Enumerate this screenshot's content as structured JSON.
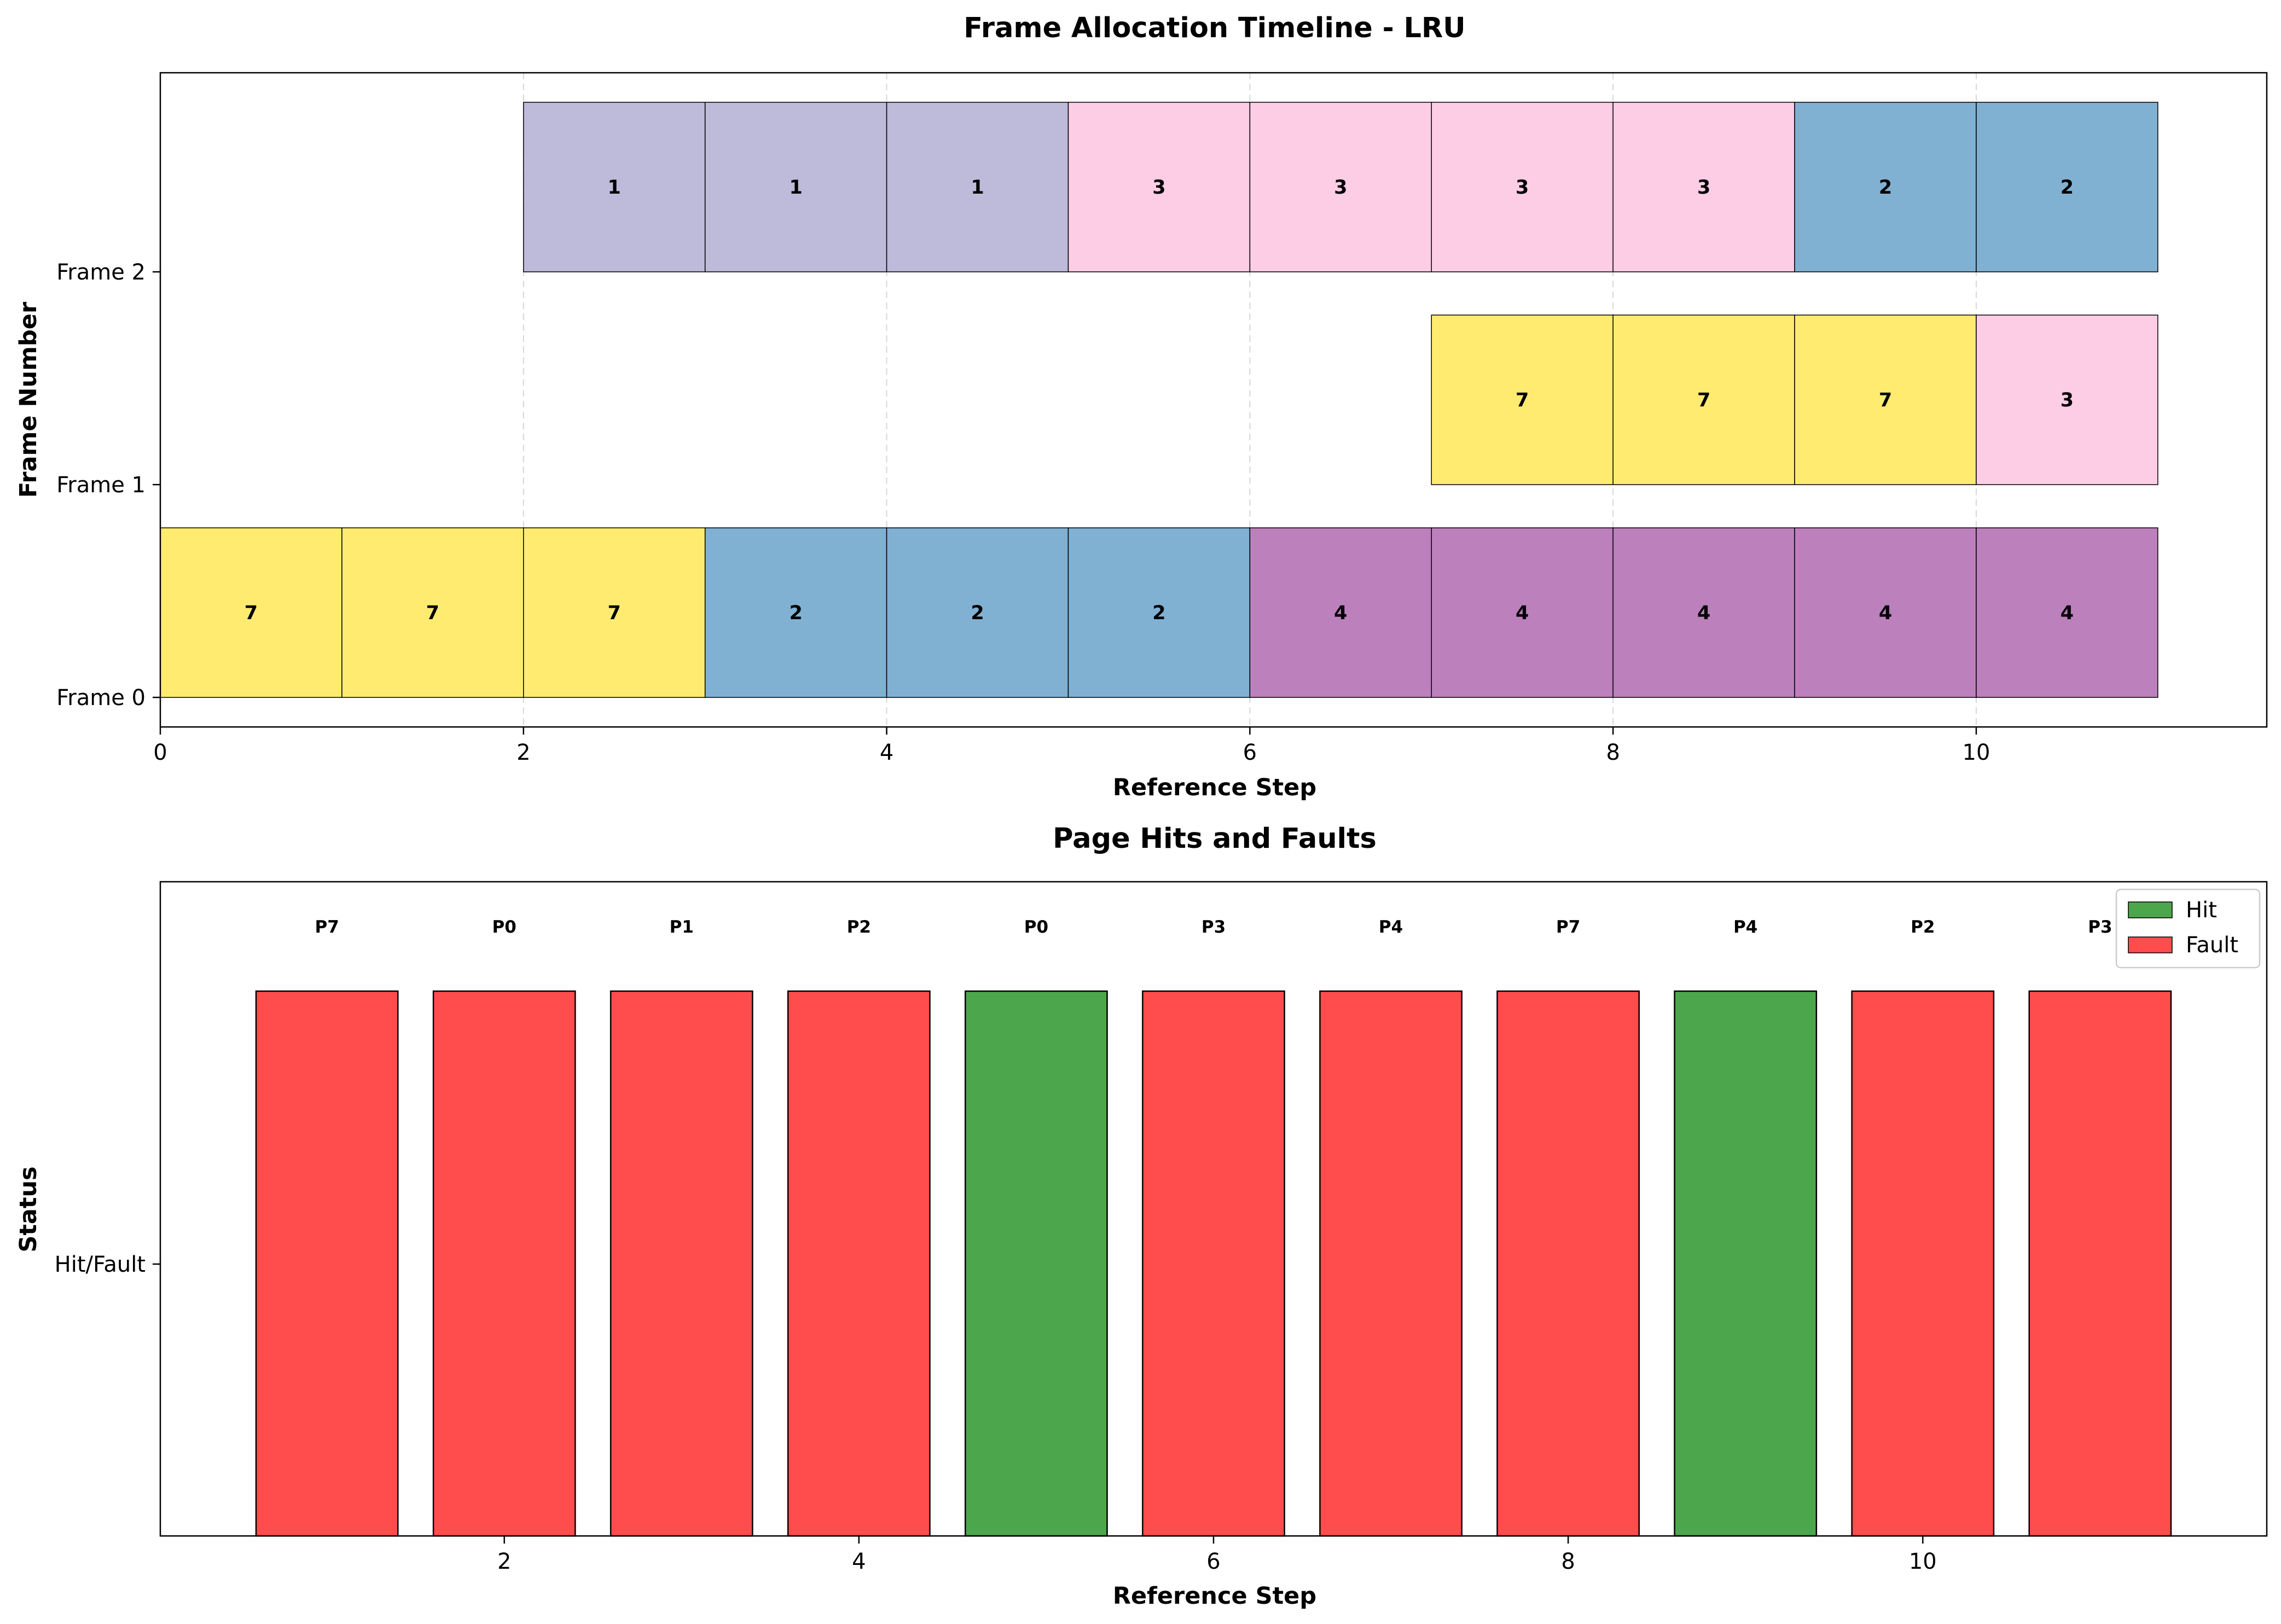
{
  "chart_data": [
    {
      "type": "timeline",
      "title": "Frame Allocation Timeline - LRU",
      "xlabel": "Reference Step",
      "ylabel": "Frame Number",
      "xlim": [
        0,
        11.6
      ],
      "xticks": [
        0,
        2,
        4,
        6,
        8,
        10
      ],
      "frames": [
        "Frame 0",
        "Frame 1",
        "Frame 2"
      ],
      "grid": "x dashed",
      "page_colors": {
        "7": "#ffeb70",
        "2": "#80b1d3",
        "1": "#bebada",
        "3": "#fccde5",
        "4": "#bc80bd"
      },
      "cells": [
        {
          "frame": 0,
          "step": 0,
          "page": "7"
        },
        {
          "frame": 0,
          "step": 1,
          "page": "7"
        },
        {
          "frame": 0,
          "step": 2,
          "page": "7"
        },
        {
          "frame": 0,
          "step": 3,
          "page": "2"
        },
        {
          "frame": 0,
          "step": 4,
          "page": "2"
        },
        {
          "frame": 0,
          "step": 5,
          "page": "2"
        },
        {
          "frame": 0,
          "step": 6,
          "page": "4"
        },
        {
          "frame": 0,
          "step": 7,
          "page": "4"
        },
        {
          "frame": 0,
          "step": 8,
          "page": "4"
        },
        {
          "frame": 0,
          "step": 9,
          "page": "4"
        },
        {
          "frame": 0,
          "step": 10,
          "page": "4"
        },
        {
          "frame": 1,
          "step": 7,
          "page": "7"
        },
        {
          "frame": 1,
          "step": 8,
          "page": "7"
        },
        {
          "frame": 1,
          "step": 9,
          "page": "7"
        },
        {
          "frame": 1,
          "step": 10,
          "page": "3"
        },
        {
          "frame": 2,
          "step": 2,
          "page": "1"
        },
        {
          "frame": 2,
          "step": 3,
          "page": "1"
        },
        {
          "frame": 2,
          "step": 4,
          "page": "1"
        },
        {
          "frame": 2,
          "step": 5,
          "page": "3"
        },
        {
          "frame": 2,
          "step": 6,
          "page": "3"
        },
        {
          "frame": 2,
          "step": 7,
          "page": "3"
        },
        {
          "frame": 2,
          "step": 8,
          "page": "3"
        },
        {
          "frame": 2,
          "step": 9,
          "page": "2"
        },
        {
          "frame": 2,
          "step": 10,
          "page": "2"
        }
      ]
    },
    {
      "type": "bar",
      "title": "Page Hits and Faults",
      "xlabel": "Reference Step",
      "ylabel": "Status",
      "ytick": "Hit/Fault",
      "xlim": [
        0.06,
        11.94
      ],
      "xticks": [
        2,
        4,
        6,
        8,
        10
      ],
      "legend_position": "top-right",
      "legend": [
        {
          "label": "Hit",
          "color": "#4ca64c"
        },
        {
          "label": "Fault",
          "color": "#ff4c4c"
        }
      ],
      "steps": [
        {
          "x": 1,
          "page": "P7",
          "status": "Fault"
        },
        {
          "x": 2,
          "page": "P0",
          "status": "Fault"
        },
        {
          "x": 3,
          "page": "P1",
          "status": "Fault"
        },
        {
          "x": 4,
          "page": "P2",
          "status": "Fault"
        },
        {
          "x": 5,
          "page": "P0",
          "status": "Hit"
        },
        {
          "x": 6,
          "page": "P3",
          "status": "Fault"
        },
        {
          "x": 7,
          "page": "P4",
          "status": "Fault"
        },
        {
          "x": 8,
          "page": "P7",
          "status": "Fault"
        },
        {
          "x": 9,
          "page": "P4",
          "status": "Hit"
        },
        {
          "x": 10,
          "page": "P2",
          "status": "Fault"
        },
        {
          "x": 11,
          "page": "P3",
          "status": "Fault"
        }
      ]
    }
  ]
}
